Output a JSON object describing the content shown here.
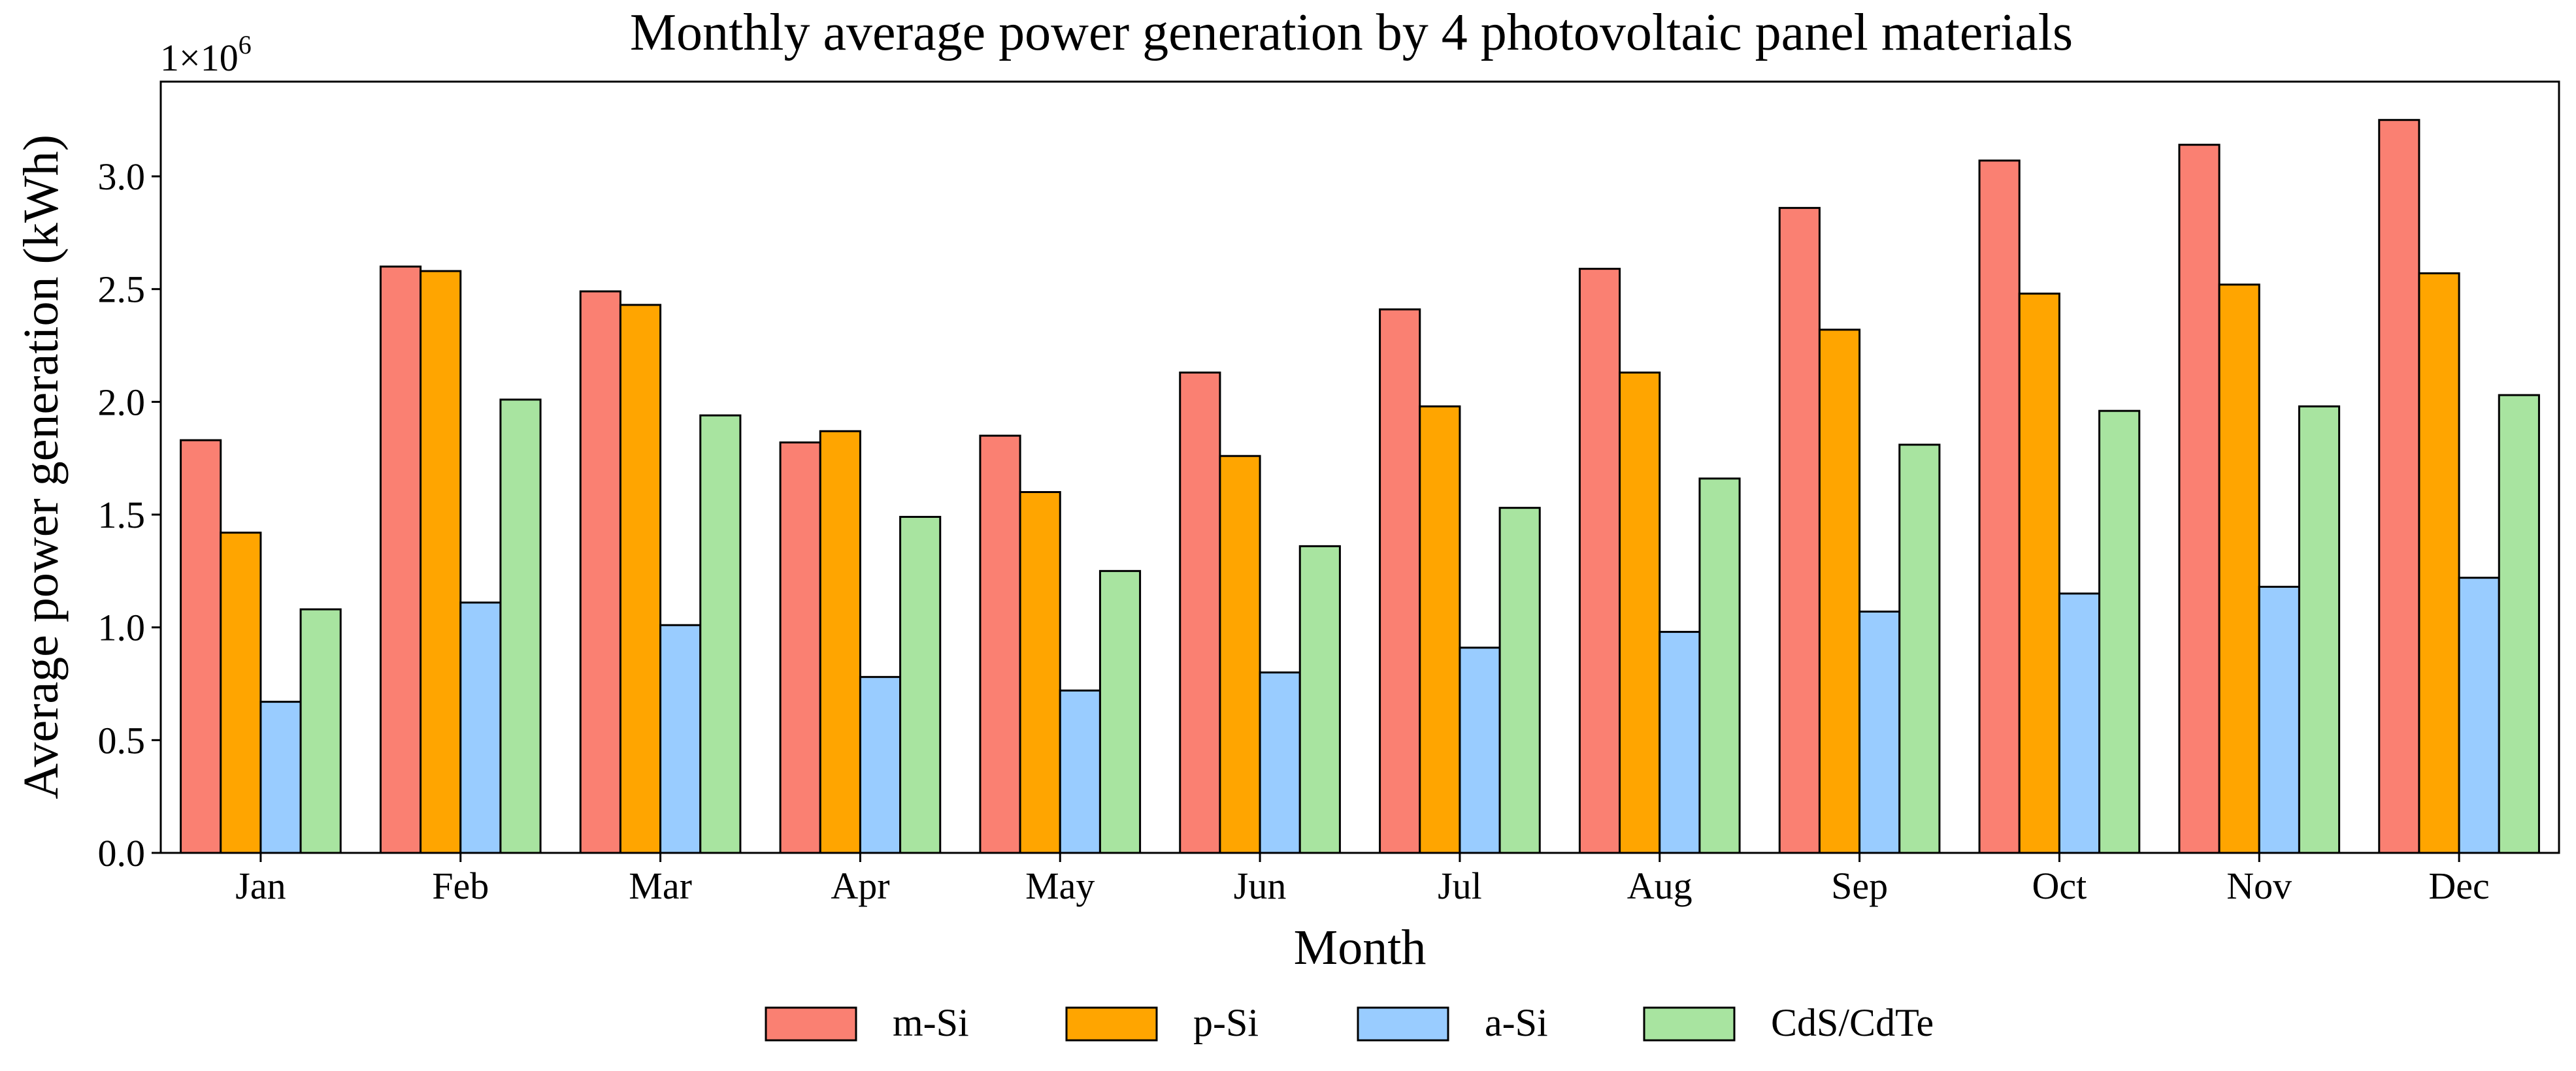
{
  "chart_data": {
    "type": "bar",
    "title": "Monthly average power generation by 4 photovoltaic panel materials",
    "xlabel": "Month",
    "ylabel": "Average power generation (kWh)",
    "y_multiplier_label": "1×10",
    "y_multiplier_exponent": "6",
    "ylim": [
      0,
      3.42
    ],
    "y_ticks": [
      0.0,
      0.5,
      1.0,
      1.5,
      2.0,
      2.5,
      3.0
    ],
    "y_tick_labels": [
      "0.0",
      "0.5",
      "1.0",
      "1.5",
      "2.0",
      "2.5",
      "3.0"
    ],
    "categories": [
      "Jan",
      "Feb",
      "Mar",
      "Apr",
      "May",
      "Jun",
      "Jul",
      "Aug",
      "Sep",
      "Oct",
      "Nov",
      "Dec"
    ],
    "series": [
      {
        "name": "m-Si",
        "color": "#FA8072",
        "values": [
          1.83,
          2.6,
          2.49,
          1.82,
          1.85,
          2.13,
          2.41,
          2.59,
          2.86,
          3.07,
          3.14,
          3.25
        ]
      },
      {
        "name": "p-Si",
        "color": "#FFA500",
        "values": [
          1.42,
          2.58,
          2.43,
          1.87,
          1.6,
          1.76,
          1.98,
          2.13,
          2.32,
          2.48,
          2.52,
          2.57
        ]
      },
      {
        "name": "a-Si",
        "color": "#99CCFF",
        "values": [
          0.67,
          1.11,
          1.01,
          0.78,
          0.72,
          0.8,
          0.91,
          0.98,
          1.07,
          1.15,
          1.18,
          1.22
        ]
      },
      {
        "name": "CdS/CdTe",
        "color": "#A8E4A0",
        "values": [
          1.08,
          2.01,
          1.94,
          1.49,
          1.25,
          1.36,
          1.53,
          1.66,
          1.81,
          1.96,
          1.98,
          2.03
        ]
      }
    ],
    "legend_position": "bottom-center",
    "grid": false
  }
}
